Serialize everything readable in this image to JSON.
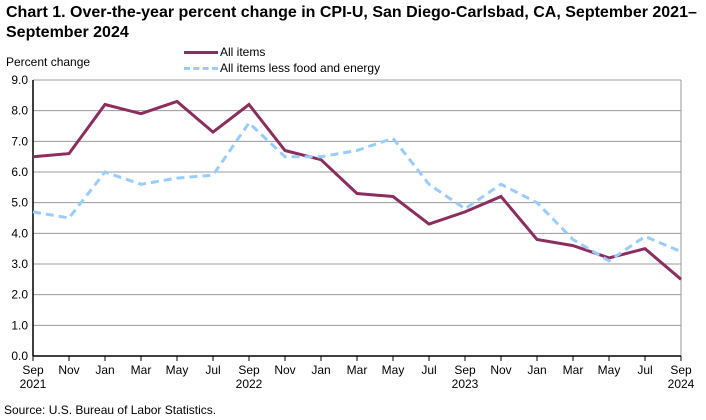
{
  "title": "Chart 1. Over-the-year percent change in CPI-U, San Diego-Carlsbad, CA, September 2021–September 2024",
  "source": "Source: U.S. Bureau of Labor Statistics.",
  "chart_data": {
    "type": "line",
    "title": "Chart 1. Over-the-year percent change in CPI-U, San Diego-Carlsbad, CA, September 2021–September 2024",
    "xlabel": "",
    "ylabel": "Percent change",
    "ylim": [
      0,
      9
    ],
    "yticks": [
      "0.0",
      "1.0",
      "2.0",
      "3.0",
      "4.0",
      "5.0",
      "6.0",
      "7.0",
      "8.0",
      "9.0"
    ],
    "grid": true,
    "legend_position": "top-center",
    "x": [
      "Sep 2021",
      "Nov 2021",
      "Jan 2022",
      "Mar 2022",
      "May 2022",
      "Jul 2022",
      "Sep 2022",
      "Nov 2022",
      "Jan 2023",
      "Mar 2023",
      "May 2023",
      "Jul 2023",
      "Sep 2023",
      "Nov 2023",
      "Jan 2024",
      "Mar 2024",
      "May 2024",
      "Jul 2024",
      "Sep 2024"
    ],
    "xtick_labels": [
      {
        "month": "Sep",
        "year": "2021"
      },
      {
        "month": "Nov",
        "year": ""
      },
      {
        "month": "Jan",
        "year": ""
      },
      {
        "month": "Mar",
        "year": ""
      },
      {
        "month": "May",
        "year": ""
      },
      {
        "month": "Jul",
        "year": ""
      },
      {
        "month": "Sep",
        "year": "2022"
      },
      {
        "month": "Nov",
        "year": ""
      },
      {
        "month": "Jan",
        "year": ""
      },
      {
        "month": "Mar",
        "year": ""
      },
      {
        "month": "May",
        "year": ""
      },
      {
        "month": "Jul",
        "year": ""
      },
      {
        "month": "Sep",
        "year": "2023"
      },
      {
        "month": "Nov",
        "year": ""
      },
      {
        "month": "Jan",
        "year": ""
      },
      {
        "month": "Mar",
        "year": ""
      },
      {
        "month": "May",
        "year": ""
      },
      {
        "month": "Jul",
        "year": ""
      },
      {
        "month": "Sep",
        "year": "2024"
      }
    ],
    "series": [
      {
        "name": "All items",
        "color": "#8b2e5e",
        "style": "solid",
        "values": [
          6.5,
          6.6,
          8.2,
          7.9,
          8.3,
          7.3,
          8.2,
          6.7,
          6.4,
          5.3,
          5.2,
          4.3,
          4.7,
          5.2,
          3.8,
          3.6,
          3.2,
          3.5,
          2.5
        ]
      },
      {
        "name": "All items less food and energy",
        "color": "#99ccff",
        "style": "dashed",
        "values": [
          4.7,
          4.5,
          6.0,
          5.6,
          5.8,
          5.9,
          7.6,
          6.5,
          6.5,
          6.7,
          7.1,
          5.6,
          4.8,
          5.6,
          5.0,
          3.8,
          3.1,
          3.9,
          3.4
        ]
      }
    ]
  }
}
